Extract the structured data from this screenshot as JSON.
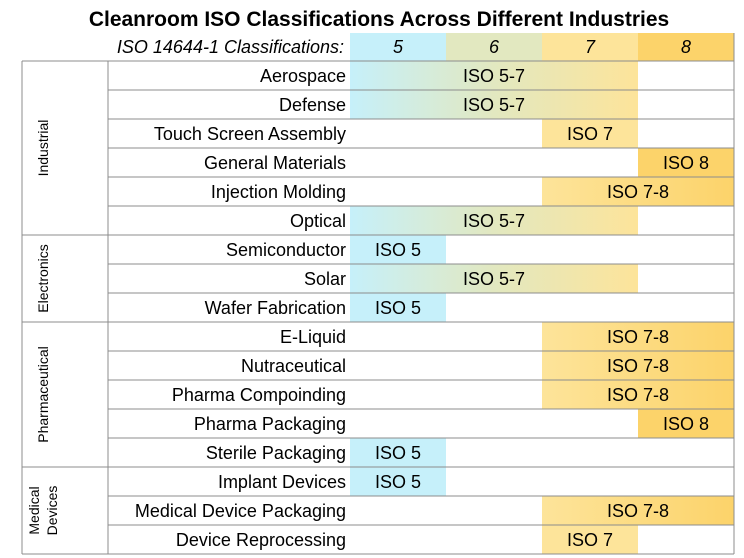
{
  "chart_data": {
    "type": "table",
    "title": "Cleanroom ISO Classifications Across Different Industries",
    "header_label": "ISO 14644-1 Classifications:",
    "classes": [
      "5",
      "6",
      "7",
      "8"
    ],
    "class_colors": [
      "#c6f0fa",
      "#e2e8c0",
      "#fde49a",
      "#fcd36a"
    ],
    "groups": [
      {
        "name": "Industrial",
        "lines": [
          "Industrial"
        ],
        "rows": [
          {
            "label": "Aerospace",
            "from": "5",
            "to": "7",
            "text": "ISO 5-7"
          },
          {
            "label": "Defense",
            "from": "5",
            "to": "7",
            "text": "ISO 5-7"
          },
          {
            "label": "Touch Screen Assembly",
            "from": "7",
            "to": "7",
            "text": "ISO 7"
          },
          {
            "label": "General Materials",
            "from": "8",
            "to": "8",
            "text": "ISO 8"
          },
          {
            "label": "Injection Molding",
            "from": "7",
            "to": "8",
            "text": "ISO 7-8"
          },
          {
            "label": "Optical",
            "from": "5",
            "to": "7",
            "text": "ISO 5-7"
          }
        ]
      },
      {
        "name": "Electronics",
        "lines": [
          "Electronics"
        ],
        "rows": [
          {
            "label": "Semiconductor",
            "from": "5",
            "to": "5",
            "text": "ISO 5"
          },
          {
            "label": "Solar",
            "from": "5",
            "to": "7",
            "text": "ISO 5-7"
          },
          {
            "label": "Wafer Fabrication",
            "from": "5",
            "to": "5",
            "text": "ISO 5"
          }
        ]
      },
      {
        "name": "Pharmaceutical",
        "lines": [
          "Pharmaceutical"
        ],
        "rows": [
          {
            "label": "E-Liquid",
            "from": "7",
            "to": "8",
            "text": "ISO 7-8"
          },
          {
            "label": "Nutraceutical",
            "from": "7",
            "to": "8",
            "text": "ISO 7-8"
          },
          {
            "label": "Pharma Compoinding",
            "from": "7",
            "to": "8",
            "text": "ISO 7-8"
          },
          {
            "label": "Pharma Packaging",
            "from": "8",
            "to": "8",
            "text": "ISO 8"
          },
          {
            "label": "Sterile Packaging",
            "from": "5",
            "to": "5",
            "text": "ISO 5"
          }
        ]
      },
      {
        "name": "Medical Devices",
        "lines": [
          "Medical",
          "Devices"
        ],
        "rows": [
          {
            "label": "Implant Devices",
            "from": "5",
            "to": "5",
            "text": "ISO 5"
          },
          {
            "label": "Medical Device Packaging",
            "from": "7",
            "to": "8",
            "text": "ISO 7-8"
          },
          {
            "label": "Device Reprocessing",
            "from": "7",
            "to": "7",
            "text": "ISO 7"
          }
        ]
      }
    ]
  }
}
